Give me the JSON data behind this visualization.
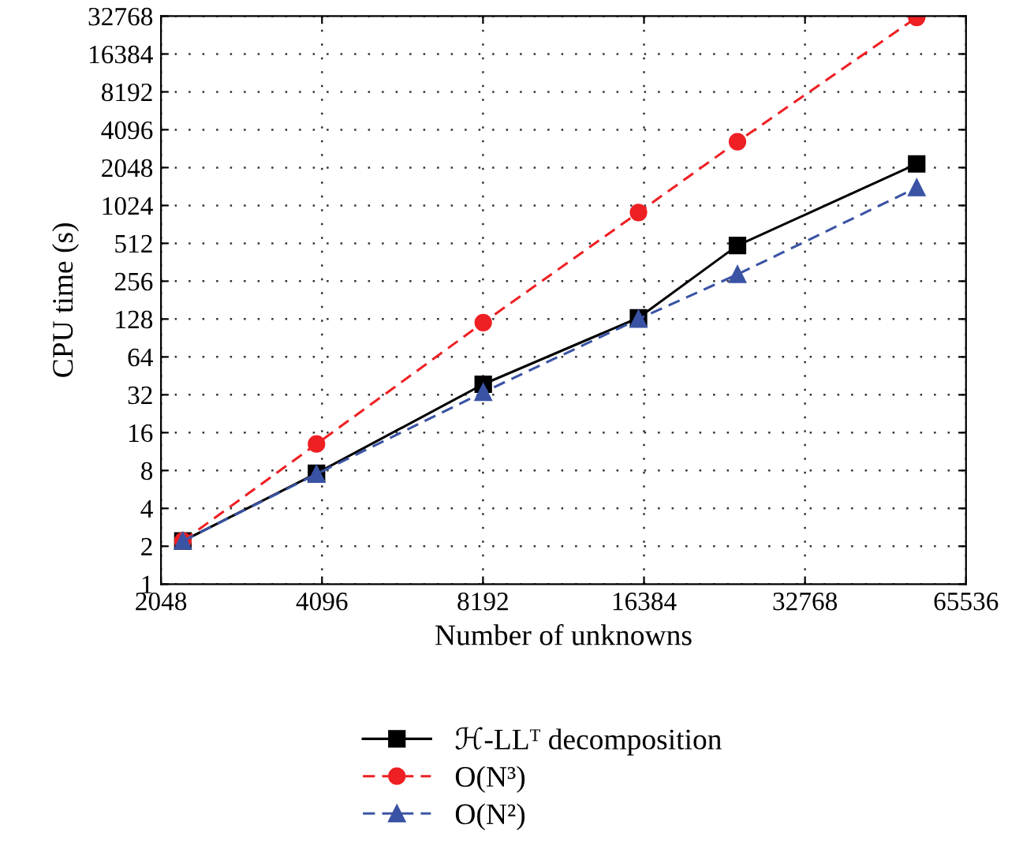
{
  "chart_data": {
    "type": "line",
    "xlabel": "Number of unknowns",
    "ylabel": "CPU time (s)",
    "log": "xy",
    "grid": true,
    "legend": "bottom",
    "x": [
      2250,
      4000,
      8200,
      16000,
      24500,
      53000
    ],
    "xlim": [
      2048,
      65536
    ],
    "xticks": [
      2048,
      4096,
      8192,
      16384,
      32768,
      65536
    ],
    "ylim": [
      1,
      32768
    ],
    "yticks": [
      1,
      2,
      4,
      8,
      16,
      32,
      64,
      128,
      256,
      512,
      1024,
      2048,
      4096,
      8192,
      16384,
      32768
    ],
    "series": [
      {
        "name": "ℋ-LLᵀ decomposition",
        "color": "#000000",
        "marker": "square",
        "line_style": "solid",
        "values": [
          2.2,
          7.6,
          38.8,
          131,
          492,
          2190
        ]
      },
      {
        "name": "O(N³)",
        "color": "#ee2024",
        "marker": "circle",
        "line_style": "dashed",
        "values": [
          2.2,
          13,
          120,
          900,
          3290,
          32000
        ]
      },
      {
        "name": "O(N²)",
        "color": "#3a53a4",
        "marker": "triangle",
        "line_style": "dashed",
        "values": [
          2.2,
          7.5,
          33.5,
          128,
          290,
          1420
        ]
      }
    ]
  }
}
